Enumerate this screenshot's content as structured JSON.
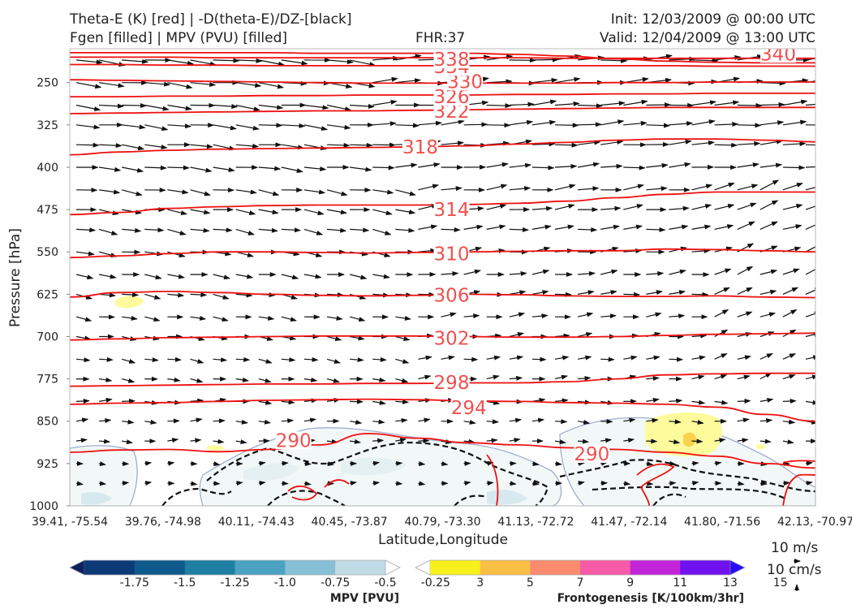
{
  "header": {
    "title_left_1": "Theta-E (K) [red] | -D(theta-E)/DZ-[black]",
    "title_left_2": "Fgen [filled] | MPV (PVU) [filled]",
    "fhr": "FHR:37",
    "init": "Init: 12/03/2009 @ 00:00 UTC",
    "valid": "Valid: 12/04/2009 @ 13:00 UTC"
  },
  "chart_data": {
    "type": "cross-section",
    "xlabel": "Latitude,Longitude",
    "ylabel": "Pressure [hPa]",
    "x_ticks": [
      "39.41, -75.54",
      "39.76, -74.98",
      "40.11, -74.43",
      "40.45, -73.87",
      "40.79, -73.30",
      "41.13, -72.72",
      "41.47, -72.14",
      "41.80, -71.56",
      "42.13, -70.97"
    ],
    "y_ticks": [
      250,
      325,
      400,
      475,
      550,
      625,
      700,
      775,
      850,
      925,
      1000
    ],
    "ylim": [
      1000,
      190
    ],
    "theta_e_contours": [
      {
        "value": 290,
        "p": [
          905,
          901,
          900,
          904,
          900,
          892,
          872,
          880,
          888,
          892,
          897,
          900,
          905,
          912,
          925,
          933
        ]
      },
      {
        "value": 294,
        "p": [
          820,
          818,
          817,
          815,
          813,
          812,
          811,
          812,
          814,
          815,
          817,
          818,
          820,
          825,
          838,
          850
        ]
      },
      {
        "value": 298,
        "p": [
          788,
          787,
          786,
          785,
          784,
          784,
          783,
          783,
          782,
          782,
          780,
          775,
          768,
          766,
          765,
          765
        ]
      },
      {
        "value": 302,
        "p": [
          706,
          704,
          702,
          701,
          700,
          699,
          699,
          699,
          700,
          701,
          701,
          700,
          698,
          696,
          695,
          694
        ]
      },
      {
        "value": 306,
        "p": [
          630,
          622,
          620,
          622,
          625,
          627,
          628,
          627,
          625,
          626,
          628,
          629,
          629,
          628,
          630,
          631
        ]
      },
      {
        "value": 310,
        "p": [
          560,
          557,
          553,
          550,
          550,
          551,
          552,
          551,
          550,
          549,
          548,
          548,
          545,
          546,
          548,
          550
        ]
      },
      {
        "value": 314,
        "p": [
          484,
          480,
          473,
          470,
          468,
          467,
          467,
          467,
          466,
          464,
          460,
          454,
          448,
          444,
          444,
          444
        ]
      },
      {
        "value": 318,
        "p": [
          378,
          373,
          370,
          368,
          367,
          366,
          365,
          364,
          362,
          359,
          356,
          352,
          350,
          350,
          352,
          355
        ]
      },
      {
        "value": 322,
        "p": [
          305,
          304,
          303,
          302,
          301,
          300,
          300,
          299,
          298,
          297,
          296,
          295,
          294,
          294,
          294,
          294
        ]
      },
      {
        "value": 326,
        "p": [
          275,
          275,
          274,
          274,
          273,
          273,
          272,
          272,
          272,
          271,
          271,
          270,
          270,
          269,
          269,
          269
        ]
      },
      {
        "value": 330,
        "p": [
          245,
          246,
          247,
          248,
          249,
          250,
          251,
          251,
          251,
          251,
          251,
          250,
          250,
          249,
          249,
          249
        ]
      },
      {
        "value": 334,
        "p": [
          218,
          218,
          219,
          219,
          220,
          220,
          220,
          220,
          220,
          220,
          220,
          220,
          220,
          221,
          221,
          221
        ]
      },
      {
        "value": 338,
        "p": [
          205,
          205,
          205,
          206,
          206,
          206,
          206,
          206,
          206,
          206,
          207,
          207,
          207,
          207,
          207,
          207
        ]
      },
      {
        "value": 340,
        "p": [
          197,
          197,
          197,
          197,
          197,
          198,
          198,
          198,
          198,
          200,
          203,
          208,
          212,
          214,
          215,
          215
        ]
      }
    ],
    "theta_e_labels": [
      {
        "text": "290",
        "xf": 0.3,
        "p": 884
      },
      {
        "text": "290",
        "xf": 0.7,
        "p": 908
      },
      {
        "text": "294",
        "xf": 0.535,
        "p": 826
      },
      {
        "text": "298",
        "xf": 0.512,
        "p": 781
      },
      {
        "text": "302",
        "xf": 0.512,
        "p": 703
      },
      {
        "text": "306",
        "xf": 0.512,
        "p": 627
      },
      {
        "text": "310",
        "xf": 0.512,
        "p": 553
      },
      {
        "text": "314",
        "xf": 0.512,
        "p": 475
      },
      {
        "text": "318",
        "xf": 0.47,
        "p": 364
      },
      {
        "text": "322",
        "xf": 0.512,
        "p": 301
      },
      {
        "text": "326",
        "xf": 0.512,
        "p": 275
      },
      {
        "text": "330",
        "xf": 0.53,
        "p": 248
      },
      {
        "text": "334",
        "xf": 0.512,
        "p": 222
      },
      {
        "text": "338",
        "xf": 0.512,
        "p": 209
      },
      {
        "text": "340",
        "xf": 0.95,
        "p": 199
      }
    ],
    "colorbars": [
      {
        "title": "MPV [PVU]",
        "ticks": [
          "-1.75",
          "-1.5",
          "-1.25",
          "-1.0",
          "-0.75",
          "-0.5",
          "-0.25"
        ],
        "colors": [
          "#0d1f5e",
          "#0c3a78",
          "#0f5a8c",
          "#1e7fa3",
          "#4ba2c3",
          "#86bfd6",
          "#bfdbe6",
          "#ffffff"
        ]
      },
      {
        "title": "Frontogenesis [K/100km/3hr]",
        "ticks": [
          "3",
          "5",
          "7",
          "9",
          "11",
          "13",
          "15"
        ],
        "colors": [
          "#ffffff",
          "#f8f01a",
          "#fbbf45",
          "#fa8b6e",
          "#f75aa7",
          "#c224d9",
          "#7012f0",
          "#2a0cf8"
        ]
      }
    ],
    "wind_reference": {
      "horizontal": "10 m/s",
      "vertical": "10 cm/s"
    }
  }
}
